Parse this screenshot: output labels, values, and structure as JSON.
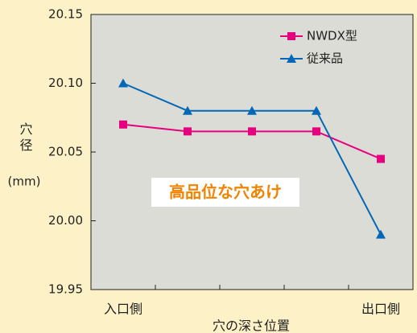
{
  "chart_data": {
    "type": "line",
    "ylabel": "穴径",
    "yunit": "(mm)",
    "xlabel": "穴の深さ位置",
    "annotation": "高品位な穴あけ",
    "categories": [
      "入口側",
      null,
      null,
      null,
      "出口側"
    ],
    "series": [
      {
        "name": "NWDX型",
        "color": "#e4007f",
        "marker": "square",
        "values": [
          20.07,
          20.065,
          20.065,
          20.065,
          20.045
        ]
      },
      {
        "name": "従来品",
        "color": "#0068b7",
        "marker": "triangle",
        "values": [
          20.1,
          20.08,
          20.08,
          20.08,
          19.99
        ]
      }
    ],
    "ylim": [
      19.95,
      20.15
    ],
    "yticks": [
      19.95,
      {
        "value": 20,
        "label": "20.00"
      },
      20.05,
      {
        "value": 20.1,
        "label": "20.10"
      },
      20.15
    ],
    "grid": false,
    "legend": "upper right"
  }
}
